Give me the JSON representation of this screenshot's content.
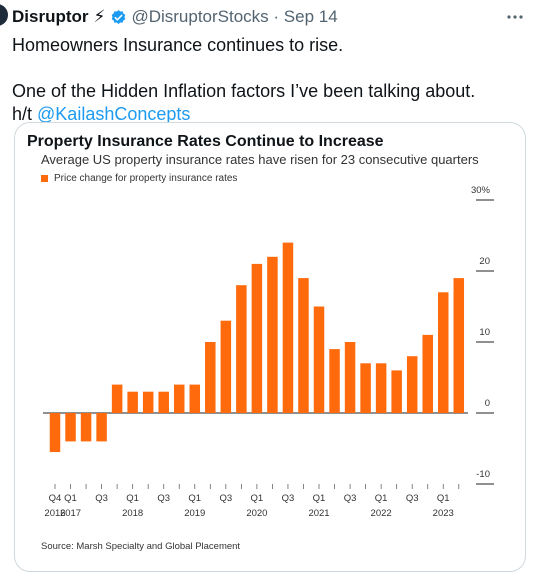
{
  "tweet": {
    "author_name": "Disruptor",
    "badge_emoji": "⚡",
    "handle_date": "@DisruptorStocks · Sep 14",
    "more_label": "···",
    "line1": "Homeowners Insurance continues to rise.",
    "line2": "One of the Hidden Inflation factors I’ve been talking about.",
    "ht": "h/t",
    "mention": "@KailashConcepts"
  },
  "card": {
    "source": "Source: Marsh Specialty and Global Placement"
  },
  "colors": {
    "bar": "#ff6a0d",
    "link": "#1d9bf0",
    "verified": "#1d9bf0"
  },
  "chart_data": {
    "type": "bar",
    "title": "Property Insurance Rates Continue to Increase",
    "subtitle": "Average US property insurance rates have risen for 23 consecutive quarters",
    "legend": [
      "Price change for property insurance rates"
    ],
    "ylim": [
      -10,
      30
    ],
    "yticks": [
      -10,
      0,
      10,
      20,
      30
    ],
    "ytick_labels": [
      "-10",
      "0",
      "10",
      "20",
      "30%"
    ],
    "categories": [
      "Q4 2016",
      "Q1 2017",
      "Q2 2017",
      "Q3 2017",
      "Q4 2017",
      "Q1 2018",
      "Q2 2018",
      "Q3 2018",
      "Q4 2018",
      "Q1 2019",
      "Q2 2019",
      "Q3 2019",
      "Q4 2019",
      "Q1 2020",
      "Q2 2020",
      "Q3 2020",
      "Q4 2020",
      "Q1 2021",
      "Q2 2021",
      "Q3 2021",
      "Q4 2021",
      "Q1 2022",
      "Q2 2022",
      "Q3 2022",
      "Q4 2022",
      "Q1 2023",
      "Q2 2023"
    ],
    "values": [
      -5.5,
      -4.0,
      -4.0,
      -4.0,
      4.0,
      3.0,
      3.0,
      3.0,
      4.0,
      4.0,
      10.0,
      13.0,
      18.0,
      21.0,
      22.0,
      24.0,
      19.0,
      15.0,
      9.0,
      10.0,
      7.0,
      7.0,
      6.0,
      8.0,
      11.0,
      17.0,
      19.0
    ],
    "x_tick_labels": [
      {
        "index": 0,
        "label": "Q4"
      },
      {
        "index": 1,
        "label": "Q1"
      },
      {
        "index": 3,
        "label": "Q3"
      },
      {
        "index": 5,
        "label": "Q1"
      },
      {
        "index": 7,
        "label": "Q3"
      },
      {
        "index": 9,
        "label": "Q1"
      },
      {
        "index": 11,
        "label": "Q3"
      },
      {
        "index": 13,
        "label": "Q1"
      },
      {
        "index": 15,
        "label": "Q3"
      },
      {
        "index": 17,
        "label": "Q1"
      },
      {
        "index": 19,
        "label": "Q3"
      },
      {
        "index": 21,
        "label": "Q1"
      },
      {
        "index": 23,
        "label": "Q3"
      },
      {
        "index": 25,
        "label": "Q1"
      }
    ],
    "year_labels": [
      {
        "index": 0,
        "label": "2016"
      },
      {
        "index": 1,
        "label": "2017"
      },
      {
        "index": 5,
        "label": "2018"
      },
      {
        "index": 9,
        "label": "2019"
      },
      {
        "index": 13,
        "label": "2020"
      },
      {
        "index": 17,
        "label": "2021"
      },
      {
        "index": 21,
        "label": "2022"
      },
      {
        "index": 25,
        "label": "2023"
      }
    ],
    "grid": false,
    "legend_position": "top-left"
  }
}
